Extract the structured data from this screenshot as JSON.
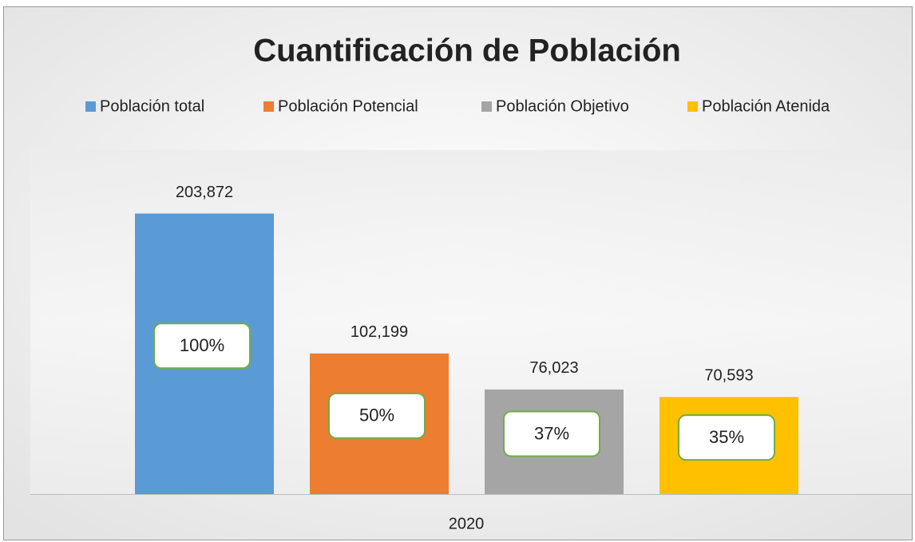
{
  "chart_data": {
    "type": "bar",
    "title": "Cuantificación de Población",
    "categories": [
      "2020"
    ],
    "ylim": [
      0,
      250000
    ],
    "series": [
      {
        "name": "Población total",
        "color": "#5b9bd5",
        "values": [
          203872
        ],
        "value_labels": [
          "203,872"
        ],
        "percent_values": [
          100
        ],
        "percent_labels": [
          "100%"
        ]
      },
      {
        "name": "Población Potencial",
        "color": "#ed7d31",
        "values": [
          102199
        ],
        "value_labels": [
          "102,199"
        ],
        "percent_values": [
          50
        ],
        "percent_labels": [
          "50%"
        ]
      },
      {
        "name": "Población Objetivo",
        "color": "#a5a5a5",
        "values": [
          76023
        ],
        "value_labels": [
          "76,023"
        ],
        "percent_values": [
          37
        ],
        "percent_labels": [
          "37%"
        ]
      },
      {
        "name": "Población Atenida",
        "color": "#ffc000",
        "values": [
          70593
        ],
        "value_labels": [
          "70,593"
        ],
        "percent_values": [
          35
        ],
        "percent_labels": [
          "35%"
        ]
      }
    ]
  }
}
